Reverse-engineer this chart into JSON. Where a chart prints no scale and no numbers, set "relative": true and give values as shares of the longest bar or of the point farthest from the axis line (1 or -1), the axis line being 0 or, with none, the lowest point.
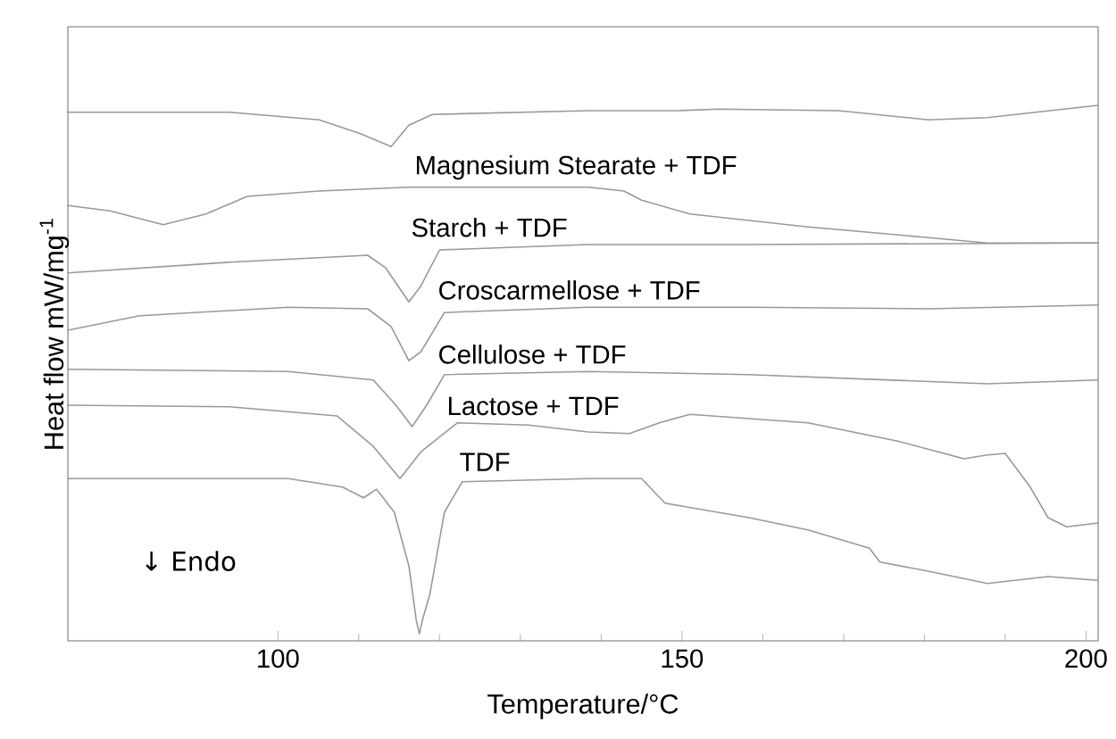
{
  "chart_data": {
    "type": "line",
    "relative": true,
    "xlabel": "Temperature/°C",
    "ylabel": "Heat flow mW/mg$^{-1}$",
    "xlim": [
      74,
      201.5
    ],
    "xticks": [
      100,
      150,
      200
    ],
    "annotations": [
      "↓ Endo"
    ],
    "series": [
      {
        "color": "#999999",
        "x": [
          74,
          94.0,
          105.1,
          110.2,
          114.0,
          116.2,
          119.1,
          138.4,
          149.4,
          154.5,
          169.4,
          180.5,
          187.8,
          201.5
        ],
        "values": [
          0.987,
          0.987,
          0.973,
          0.947,
          0.923,
          0.963,
          0.983,
          0.99,
          0.99,
          0.993,
          0.99,
          0.973,
          0.977,
          1.0
        ]
      },
      {
        "name": "Magnesium Stearate + TDF",
        "color": "#999999",
        "x": [
          74,
          79.2,
          85.8,
          91.1,
          96.2,
          105.1,
          116.2,
          138.4,
          142.8,
          145.0,
          151.0,
          165.6,
          180.5,
          187.8,
          201.5
        ],
        "values": [
          0.813,
          0.803,
          0.777,
          0.797,
          0.83,
          0.84,
          0.847,
          0.847,
          0.84,
          0.823,
          0.797,
          0.773,
          0.753,
          0.743,
          0.743
        ]
      },
      {
        "name": "Starch + TDF",
        "color": "#999999",
        "x": [
          74,
          94.0,
          111.1,
          113.3,
          116.2,
          117.7,
          120.0,
          138.4,
          158.3,
          201.5
        ],
        "values": [
          0.687,
          0.707,
          0.72,
          0.697,
          0.633,
          0.663,
          0.73,
          0.74,
          0.74,
          0.743
        ]
      },
      {
        "name": "Croscarmellose + TDF",
        "color": "#999999",
        "x": [
          74,
          82.9,
          101.3,
          111.1,
          114.0,
          116.2,
          117.7,
          120.6,
          138.4,
          158.3,
          180.5,
          201.5
        ],
        "values": [
          0.58,
          0.607,
          0.623,
          0.62,
          0.587,
          0.523,
          0.54,
          0.613,
          0.623,
          0.623,
          0.62,
          0.627
        ]
      },
      {
        "name": "Cellulose + TDF",
        "color": "#999999",
        "x": [
          74,
          101.3,
          111.8,
          114.6,
          116.6,
          118.4,
          120.6,
          138.4,
          158.3,
          187.8,
          201.5
        ],
        "values": [
          0.507,
          0.503,
          0.487,
          0.44,
          0.4,
          0.44,
          0.497,
          0.503,
          0.497,
          0.48,
          0.487
        ]
      },
      {
        "name": "Lactose + TDF",
        "color": "#999999",
        "x": [
          74,
          94.0,
          107.3,
          111.8,
          115.1,
          117.7,
          122.2,
          131.0,
          138.4,
          143.5,
          147.2,
          151.0,
          165.6,
          176.7,
          184.9,
          187.8,
          190.0,
          193.1,
          195.3,
          197.6,
          201.5
        ],
        "values": [
          0.44,
          0.437,
          0.42,
          0.363,
          0.303,
          0.353,
          0.407,
          0.403,
          0.39,
          0.387,
          0.407,
          0.423,
          0.407,
          0.373,
          0.34,
          0.347,
          0.35,
          0.287,
          0.23,
          0.213,
          0.22
        ]
      },
      {
        "name": "TDF",
        "color": "#999999",
        "x": [
          74,
          101.3,
          108.0,
          110.6,
          112.2,
          114.4,
          116.2,
          117.1,
          117.5,
          117.9,
          118.8,
          120.6,
          122.8,
          138.4,
          145.0,
          147.9,
          158.3,
          165.6,
          173.2,
          174.5,
          180.5,
          187.8,
          195.3,
          201.5
        ],
        "values": [
          0.303,
          0.303,
          0.287,
          0.267,
          0.283,
          0.24,
          0.14,
          0.04,
          0.013,
          0.04,
          0.087,
          0.24,
          0.297,
          0.303,
          0.303,
          0.257,
          0.23,
          0.207,
          0.173,
          0.147,
          0.13,
          0.107,
          0.12,
          0.113
        ]
      }
    ]
  }
}
